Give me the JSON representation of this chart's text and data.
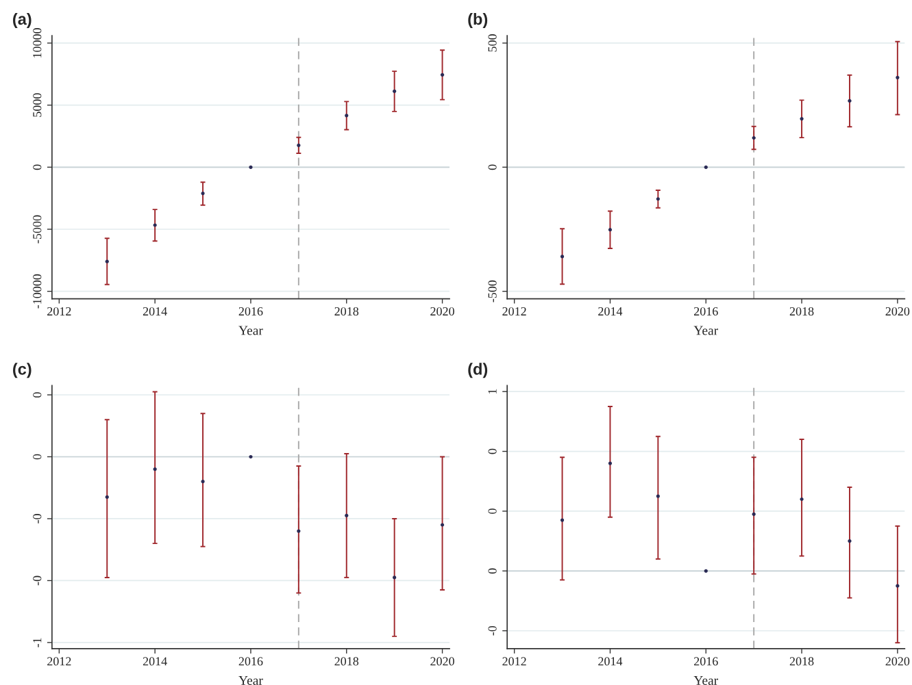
{
  "chart_data": [
    {
      "type": "scatter",
      "title": "(a)",
      "xlabel": "Year",
      "marker": "circle",
      "grid": "y",
      "x": [
        2013,
        2014,
        2015,
        2016,
        2017,
        2018,
        2019,
        2020
      ],
      "series": [
        {
          "color": "#2b2b55",
          "values": [
            -7600,
            -4670,
            -2110,
            0,
            1760,
            4160,
            6120,
            7440
          ],
          "errors": [
            [
              -9450,
              -5730
            ],
            [
              -5950,
              -3410
            ],
            [
              -3060,
              -1210
            ],
            null,
            [
              1120,
              2400
            ],
            [
              3020,
              5290
            ],
            [
              4490,
              7730
            ],
            [
              5440,
              9430
            ]
          ]
        }
      ],
      "xlim": [
        2011.85,
        2020.15
      ],
      "xticks": [
        2012,
        2014,
        2016,
        2018,
        2020
      ],
      "ylim": [
        -10600,
        10600
      ],
      "yticks": [
        -10000,
        -5000,
        0,
        5000,
        10000
      ],
      "ref_lines": [
        {
          "axis": "y",
          "value": 0,
          "color": "#c8d2d6",
          "line_style": "solid"
        },
        {
          "axis": "x",
          "value": 2017,
          "color": "#aaaaaa",
          "line_style": "dashed"
        }
      ]
    },
    {
      "type": "scatter",
      "title": "(b)",
      "xlabel": "Year",
      "marker": "circle",
      "grid": "y",
      "x": [
        2013,
        2014,
        2015,
        2016,
        2017,
        2018,
        2019,
        2020
      ],
      "series": [
        {
          "color": "#2b2b55",
          "values": [
            -360,
            -252,
            -128,
            0,
            118,
            195,
            267,
            361
          ],
          "errors": [
            [
              -471,
              -248
            ],
            [
              -327,
              -177
            ],
            [
              -164,
              -93
            ],
            null,
            [
              72,
              164
            ],
            [
              119,
              270
            ],
            [
              163,
              371
            ],
            [
              212,
              506
            ]
          ]
        }
      ],
      "xlim": [
        2011.85,
        2020.15
      ],
      "xticks": [
        2012,
        2014,
        2016,
        2018,
        2020
      ],
      "ylim": [
        -530,
        530
      ],
      "yticks": [
        -500,
        0,
        500
      ],
      "ref_lines": [
        {
          "axis": "y",
          "value": 0,
          "color": "#c8d2d6",
          "line_style": "solid"
        },
        {
          "axis": "x",
          "value": 2017,
          "color": "#aaaaaa",
          "line_style": "dashed"
        }
      ]
    },
    {
      "type": "scatter",
      "title": "(c)",
      "xlabel": "Year",
      "marker": "circle",
      "grid": "y",
      "x": [
        2013,
        2014,
        2015,
        2016,
        2017,
        2018,
        2019,
        2020
      ],
      "series": [
        {
          "color": "#2b2b55",
          "values": [
            -0.13,
            -0.04,
            -0.08,
            0,
            -0.24,
            -0.19,
            -0.39,
            -0.22
          ],
          "errors": [
            [
              -0.39,
              0.12
            ],
            [
              -0.28,
              0.21
            ],
            [
              -0.29,
              0.14
            ],
            null,
            [
              -0.44,
              -0.03
            ],
            [
              -0.39,
              0.01
            ],
            [
              -0.58,
              -0.2
            ],
            [
              -0.43,
              0
            ]
          ]
        }
      ],
      "xlim": [
        2011.85,
        2020.15
      ],
      "xticks": [
        2012,
        2014,
        2016,
        2018,
        2020
      ],
      "ylim": [
        -0.62,
        0.23
      ],
      "yticks": [
        {
          "value": -0.6,
          "label": "-1"
        },
        {
          "value": -0.4,
          "label": "-0"
        },
        {
          "value": -0.2,
          "label": "-0"
        },
        {
          "value": 0,
          "label": "0"
        },
        {
          "value": 0.2,
          "label": "0"
        }
      ],
      "ref_lines": [
        {
          "axis": "y",
          "value": 0,
          "color": "#c8d2d6",
          "line_style": "solid"
        },
        {
          "axis": "x",
          "value": 2017,
          "color": "#aaaaaa",
          "line_style": "dashed"
        }
      ]
    },
    {
      "type": "scatter",
      "title": "(d)",
      "xlabel": "Year",
      "marker": "circle",
      "grid": "y",
      "x": [
        2013,
        2014,
        2015,
        2016,
        2017,
        2018,
        2019,
        2020
      ],
      "series": [
        {
          "color": "#2b2b55",
          "values": [
            0.17,
            0.36,
            0.25,
            0,
            0.19,
            0.24,
            0.1,
            -0.05
          ],
          "errors": [
            [
              -0.03,
              0.38
            ],
            [
              0.18,
              0.55
            ],
            [
              0.04,
              0.45
            ],
            null,
            [
              -0.01,
              0.38
            ],
            [
              0.05,
              0.44
            ],
            [
              -0.09,
              0.28
            ],
            [
              -0.24,
              0.15
            ]
          ]
        }
      ],
      "xlim": [
        2011.85,
        2020.15
      ],
      "xticks": [
        2012,
        2014,
        2016,
        2018,
        2020
      ],
      "ylim": [
        -0.26,
        0.62
      ],
      "yticks": [
        {
          "value": -0.2,
          "label": "-0"
        },
        {
          "value": 0,
          "label": "0"
        },
        {
          "value": 0.2,
          "label": "0"
        },
        {
          "value": 0.4,
          "label": "0"
        },
        {
          "value": 0.6,
          "label": "1"
        }
      ],
      "ref_lines": [
        {
          "axis": "y",
          "value": 0,
          "color": "#c8d2d6",
          "line_style": "solid"
        },
        {
          "axis": "x",
          "value": 2017,
          "color": "#aaaaaa",
          "line_style": "dashed"
        }
      ]
    }
  ]
}
